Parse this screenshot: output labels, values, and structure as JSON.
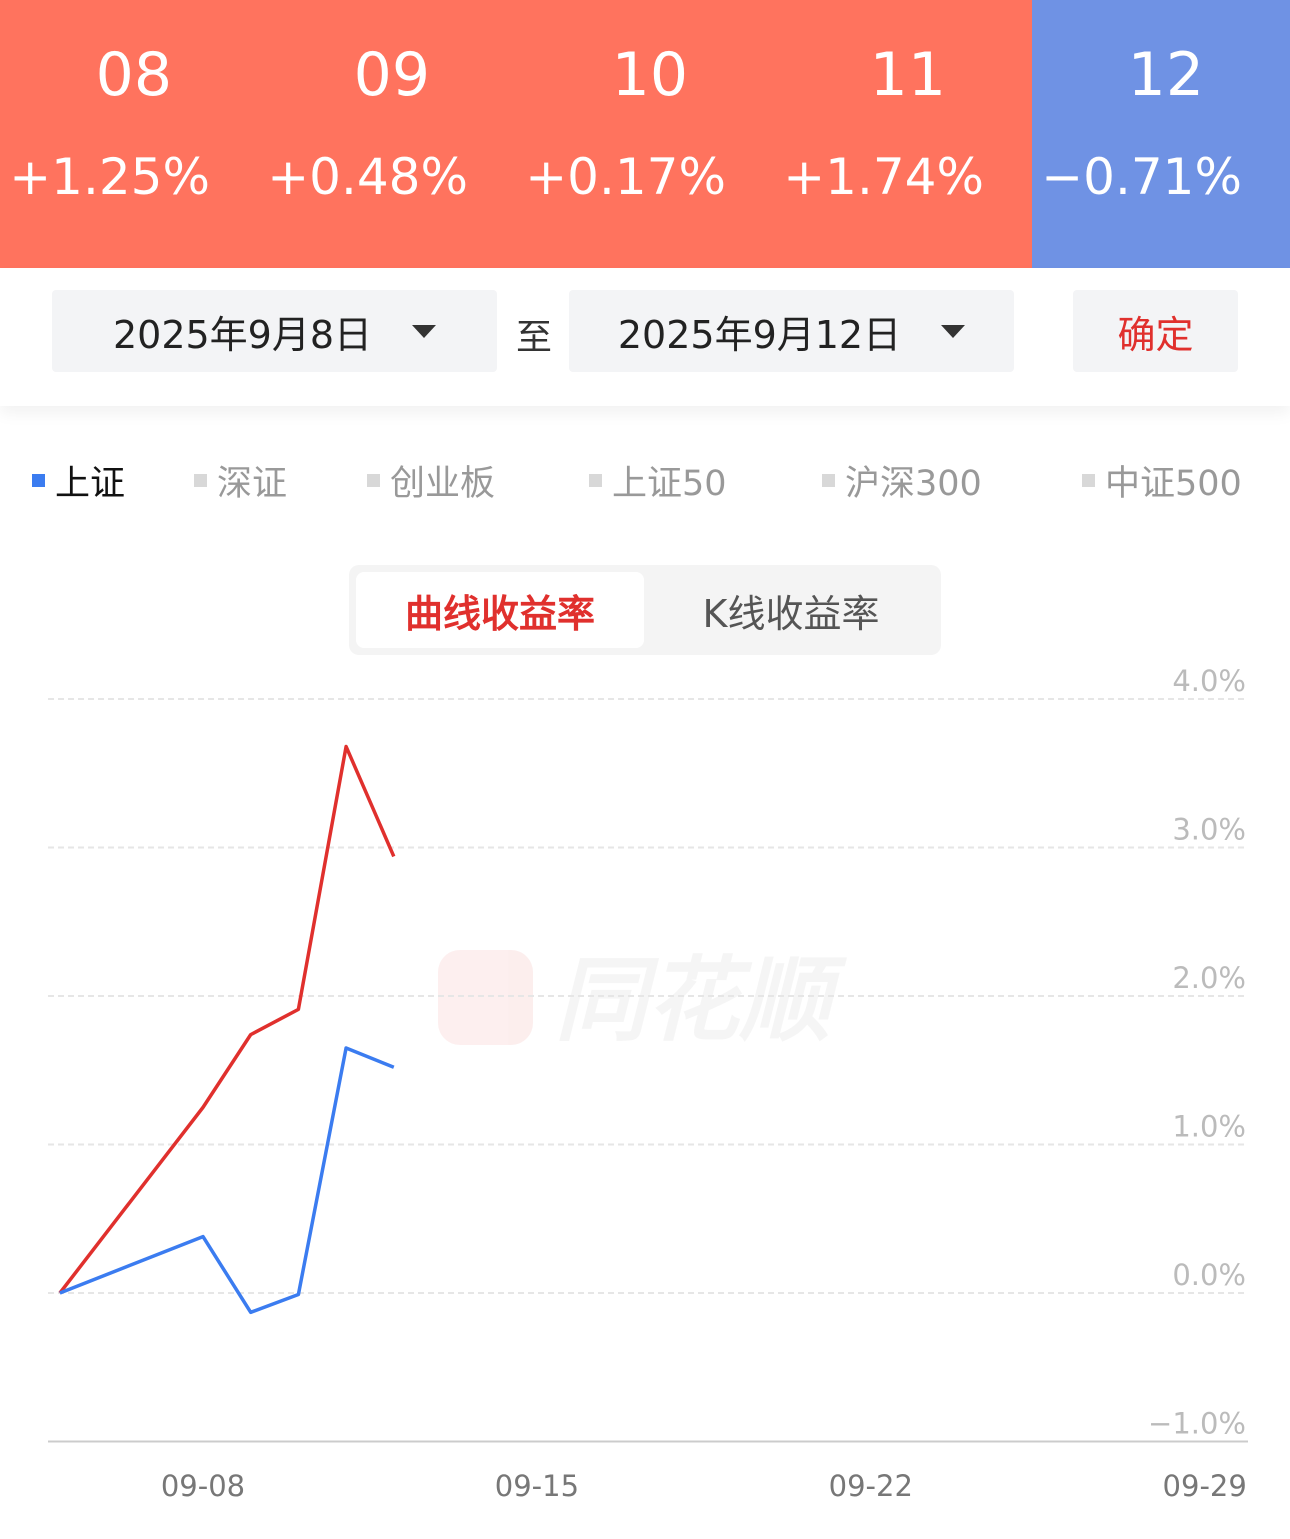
{
  "header": {
    "days": [
      {
        "day": "08",
        "change": "+1.25%",
        "dir": "up"
      },
      {
        "day": "09",
        "change": "+0.48%",
        "dir": "up"
      },
      {
        "day": "10",
        "change": "+0.17%",
        "dir": "up"
      },
      {
        "day": "11",
        "change": "+1.74%",
        "dir": "up"
      },
      {
        "day": "12",
        "change": "−0.71%",
        "dir": "down"
      }
    ],
    "up_color": "#ff735e",
    "down_color": "#6f92e4"
  },
  "range": {
    "start": "2025年9月8日",
    "separator": "至",
    "end": "2025年9月12日",
    "confirm": "确定"
  },
  "legend": {
    "items": [
      "上证",
      "深证",
      "创业板",
      "上证50",
      "沪深300",
      "中证500"
    ],
    "selected": "上证"
  },
  "tabs": {
    "items": [
      "曲线收益率",
      "K线收益率"
    ],
    "selected": "曲线收益率"
  },
  "watermark": "同花顺",
  "chart_data": {
    "type": "line",
    "x": [
      "09-05",
      "09-08",
      "09-09",
      "09-10",
      "09-11",
      "09-12"
    ],
    "series": [
      {
        "color": "#e0302d",
        "values": [
          0,
          1.25,
          1.74,
          1.91,
          3.68,
          2.94
        ]
      },
      {
        "color": "#3b7cf0",
        "values": [
          0,
          0.38,
          -0.13,
          -0.01,
          1.65,
          1.52
        ]
      }
    ],
    "xticks": [
      "09-08",
      "09-15",
      "09-22",
      "09-29"
    ],
    "xlim": [
      "09-05",
      "09-29"
    ],
    "yticks": [
      "4.0%",
      "3.0%",
      "2.0%",
      "1.0%",
      "0.0%",
      "−1.0%"
    ],
    "ylim": [
      -1,
      4
    ],
    "grid": true
  }
}
